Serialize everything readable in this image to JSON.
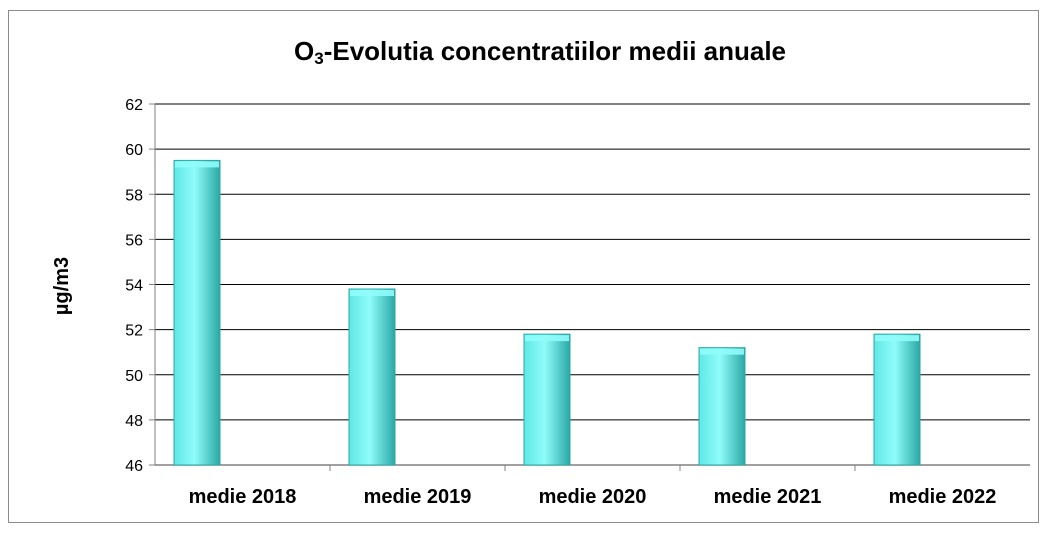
{
  "chart_data": {
    "type": "bar",
    "title_main": "O",
    "title_sub": "3",
    "title_rest": "-Evolutia concentratiilor medii anuale",
    "ylabel": "µg/m3",
    "xlabel": "",
    "categories": [
      "medie 2018",
      "medie 2019",
      "medie 2020",
      "medie 2021",
      "medie 2022"
    ],
    "values": [
      59.5,
      53.8,
      51.8,
      51.2,
      51.8
    ],
    "ylim": [
      46,
      62
    ],
    "yticks": [
      46,
      48,
      50,
      52,
      54,
      56,
      58,
      60,
      62
    ],
    "grid": true,
    "legend": "none",
    "colors": {
      "bar_light": "#8ffcfa",
      "bar_mid": "#5ee8e6",
      "bar_dark": "#2aa8a6",
      "grid": "#000000",
      "axis": "#808080"
    }
  }
}
